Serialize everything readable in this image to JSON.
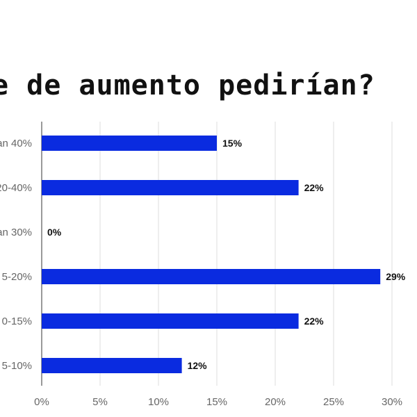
{
  "title": "e de aumento pedirían?",
  "chart_data": {
    "type": "bar",
    "orientation": "horizontal",
    "title": "e de aumento pedirían?",
    "categories": [
      "an 40%",
      "20-40%",
      "an 30%",
      "5-20%",
      "0-15%",
      "5-10%"
    ],
    "values": [
      15,
      22,
      0,
      29,
      22,
      12
    ],
    "data_labels": [
      "15%",
      "22%",
      "0%",
      "29%",
      "22%",
      "12%"
    ],
    "x_ticks": [
      0,
      5,
      10,
      15,
      20,
      25,
      30
    ],
    "x_tick_labels": [
      "0%",
      "5%",
      "10%",
      "15%",
      "20%",
      "25%",
      "30%"
    ],
    "xlim": [
      0,
      30
    ],
    "grid": true,
    "xlabel": "",
    "ylabel": "",
    "bar_color": "#0a2be0",
    "grid_color": "#dddddd"
  }
}
